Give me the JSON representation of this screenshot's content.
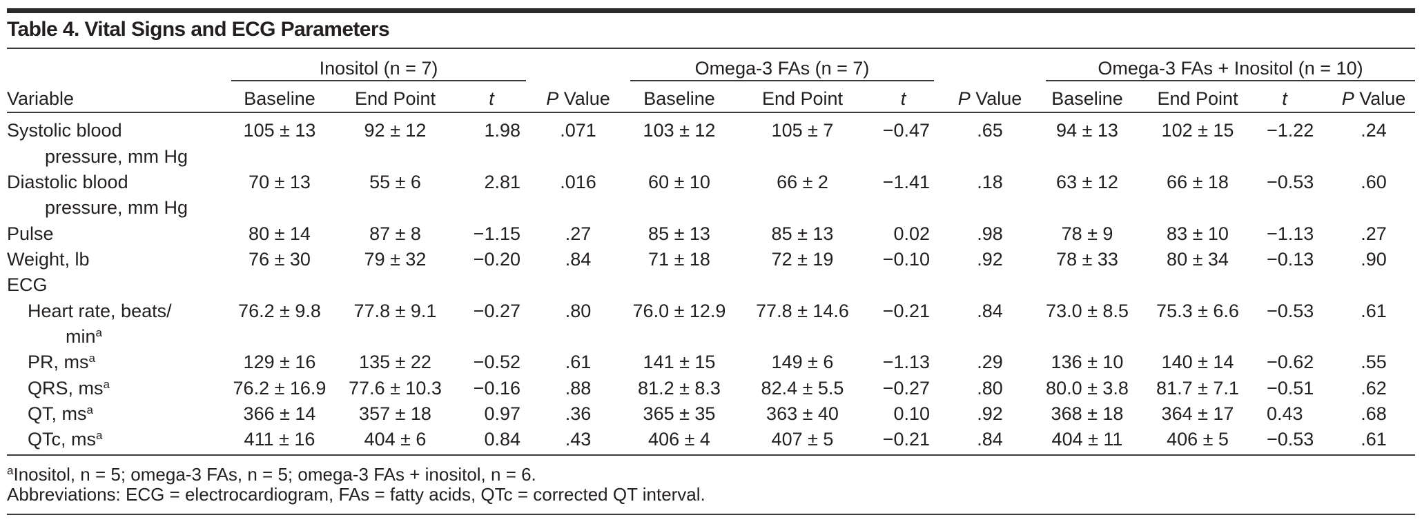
{
  "title": "Table 4. Vital Signs and ECG Parameters",
  "groups": [
    {
      "label": "Inositol (n = 7)"
    },
    {
      "label": "Omega-3 FAs (n = 7)"
    },
    {
      "label": "Omega-3 FAs + Inositol (n = 10)"
    }
  ],
  "headers": {
    "variable": "Variable",
    "baseline": "Baseline",
    "end_point": "End Point",
    "t": "t",
    "p_italic": "P",
    "p_rest": " Value"
  },
  "rows": [
    {
      "label": "Systolic blood",
      "label2": "pressure, mm Hg",
      "indent": false,
      "values": [
        "105 ± 13",
        "92 ± 12",
        "1.98",
        ".071",
        "103 ± 12",
        "105 ± 7",
        "−0.47",
        ".65",
        "94 ± 13",
        "102 ± 15",
        "−1.22",
        ".24"
      ]
    },
    {
      "label": "Diastolic blood",
      "label2": "pressure, mm Hg",
      "indent": false,
      "values": [
        "70 ± 13",
        "55 ± 6",
        "2.81",
        ".016",
        "60 ± 10",
        "66 ± 2",
        "−1.41",
        ".18",
        "63 ± 12",
        "66 ± 18",
        "−0.53",
        ".60"
      ]
    },
    {
      "label": "Pulse",
      "indent": false,
      "values": [
        "80 ± 14",
        "87 ± 8",
        "−1.15",
        ".27",
        "85 ± 13",
        "85 ± 13",
        "0.02",
        ".98",
        "78 ± 9",
        "83 ± 10",
        "−1.13",
        ".27"
      ]
    },
    {
      "label": "Weight, lb",
      "indent": false,
      "values": [
        "76 ± 30",
        "79 ± 32",
        "−0.20",
        ".84",
        "71 ± 18",
        "72 ± 19",
        "−0.10",
        ".92",
        "78 ± 33",
        "80 ± 34",
        "−0.13",
        ".90"
      ]
    },
    {
      "label": "ECG",
      "indent": false,
      "values": []
    },
    {
      "label": "Heart rate, beats/",
      "label2": "min",
      "sup2": "a",
      "indent": true,
      "values": [
        "76.2 ± 9.8",
        "77.8 ± 9.1",
        "−0.27",
        ".80",
        "76.0 ± 12.9",
        "77.8 ± 14.6",
        "−0.21",
        ".84",
        "73.0 ± 8.5",
        "75.3 ± 6.6",
        "−0.53",
        ".61"
      ]
    },
    {
      "label": "PR, ms",
      "sup": "a",
      "indent": true,
      "values": [
        "129 ± 16",
        "135 ± 22",
        "−0.52",
        ".61",
        "141 ± 15",
        "149 ± 6",
        "−1.13",
        ".29",
        "136 ± 10",
        "140 ± 14",
        "−0.62",
        ".55"
      ]
    },
    {
      "label": "QRS, ms",
      "sup": "a",
      "indent": true,
      "values": [
        "76.2 ± 16.9",
        "77.6 ± 10.3",
        "−0.16",
        ".88",
        "81.2 ± 8.3",
        "82.4 ± 5.5",
        "−0.27",
        ".80",
        "80.0 ± 3.8",
        "81.7 ± 7.1",
        "−0.51",
        ".62"
      ]
    },
    {
      "label": "QT, ms",
      "sup": "a",
      "indent": true,
      "values": [
        "366 ± 14",
        "357 ± 18",
        "0.97",
        ".36",
        "365 ± 35",
        "363 ± 40",
        "0.10",
        ".92",
        "368 ± 18",
        "364 ± 17",
        "0.43",
        ".68"
      ]
    },
    {
      "label": "QTc, ms",
      "sup": "a",
      "indent": true,
      "values": [
        "411 ± 16",
        "404 ± 6",
        "0.84",
        ".43",
        "406 ± 4",
        "407 ± 5",
        "−0.21",
        ".84",
        "404 ± 11",
        "406 ± 5",
        "−0.53",
        ".61"
      ]
    }
  ],
  "footnotes": {
    "a_marker": "a",
    "a_text": "Inositol, n = 5; omega-3 FAs, n = 5; omega-3 FAs + inositol, n = 6.",
    "abbreviations": "Abbreviations: ECG = electrocardiogram, FAs = fatty acids, QTc = corrected QT interval."
  }
}
